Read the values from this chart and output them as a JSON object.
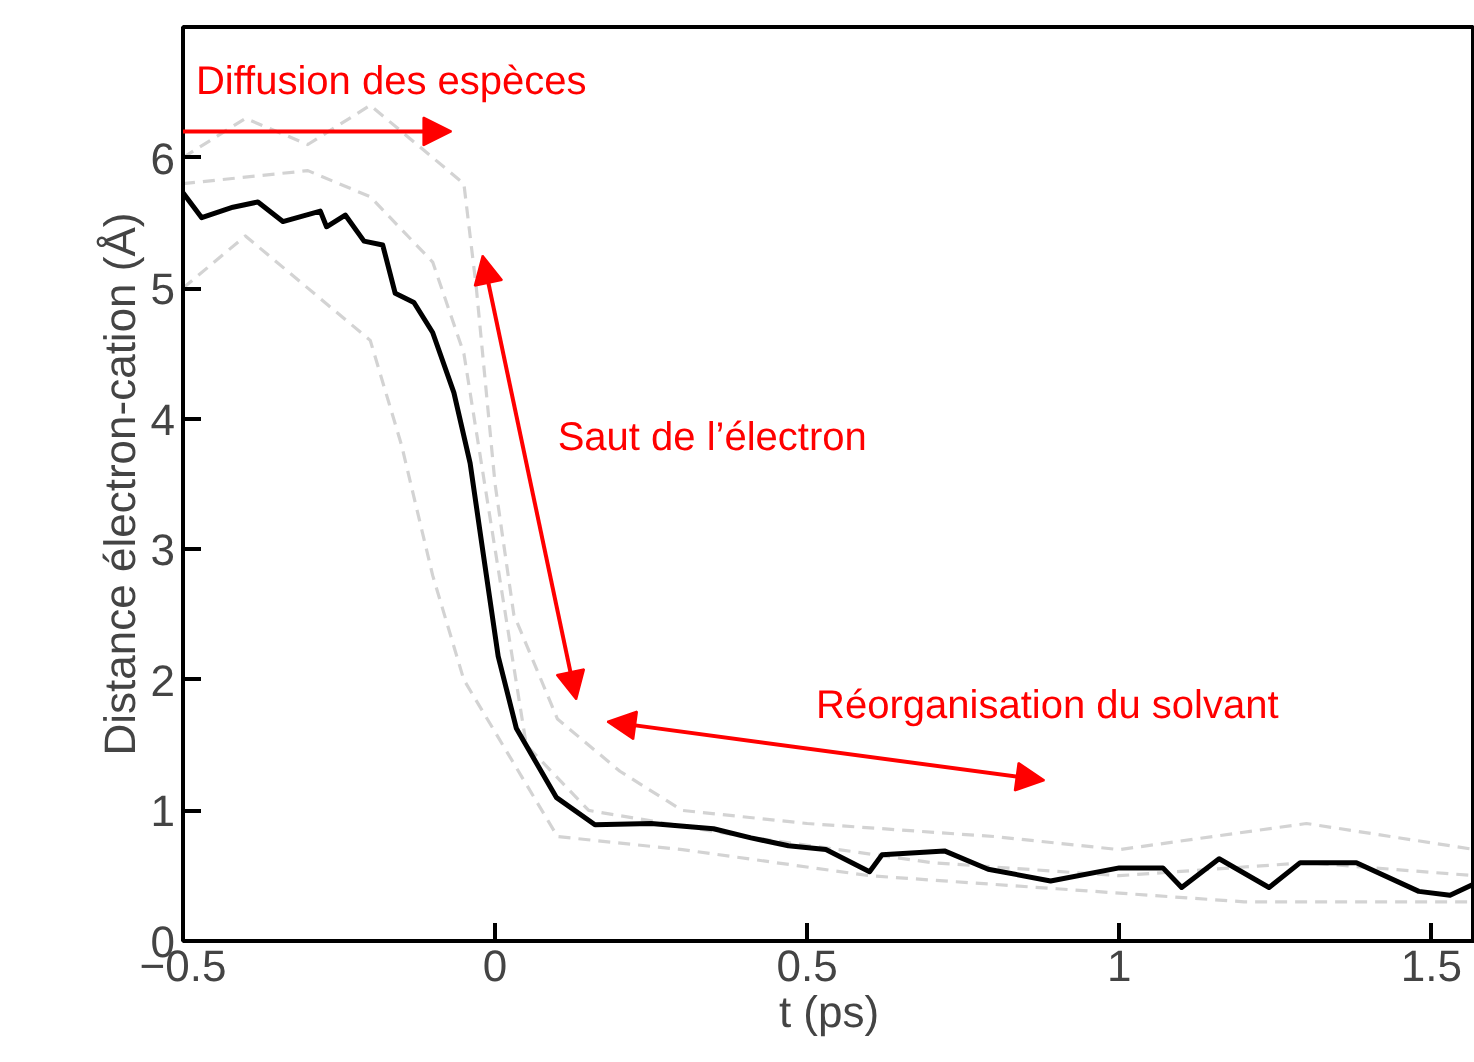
{
  "chart_data": {
    "type": "line",
    "xlabel": "t (ps)",
    "ylabel": "Distance électron-cation (Å)",
    "xlim": [
      -0.5,
      1.57
    ],
    "ylim": [
      0,
      7
    ],
    "xticks": [
      -0.5,
      0,
      0.5,
      1,
      1.5
    ],
    "yticks": [
      0,
      1,
      2,
      3,
      4,
      5,
      6
    ],
    "grid": false,
    "series": [
      {
        "color": "#d3d3d3",
        "line_style": "dashed",
        "x": [
          -0.5,
          -0.4,
          -0.3,
          -0.2,
          -0.1,
          -0.05,
          -0.03,
          0.0,
          0.03,
          0.1,
          0.2,
          0.3,
          0.5,
          0.8,
          1.0,
          1.3,
          1.57
        ],
        "values": [
          6.0,
          6.3,
          6.1,
          6.4,
          6.0,
          5.8,
          5.0,
          3.5,
          2.5,
          1.7,
          1.3,
          1.0,
          0.9,
          0.8,
          0.7,
          0.9,
          0.7
        ]
      },
      {
        "color": "#d3d3d3",
        "line_style": "dashed",
        "x": [
          -0.5,
          -0.4,
          -0.3,
          -0.2,
          -0.15,
          -0.1,
          -0.05,
          0.0,
          0.05,
          0.1,
          0.3,
          0.6,
          0.9,
          1.2,
          1.57
        ],
        "values": [
          5.0,
          5.4,
          5.0,
          4.6,
          3.8,
          2.8,
          2.0,
          1.6,
          1.2,
          0.8,
          0.7,
          0.5,
          0.4,
          0.3,
          0.3
        ]
      },
      {
        "color": "#d3d3d3",
        "line_style": "dashed",
        "x": [
          -0.5,
          -0.3,
          -0.2,
          -0.1,
          -0.05,
          0.0,
          0.05,
          0.15,
          0.4,
          0.7,
          1.0,
          1.3,
          1.57
        ],
        "values": [
          5.8,
          5.9,
          5.7,
          5.2,
          4.5,
          3.0,
          1.5,
          1.0,
          0.8,
          0.6,
          0.5,
          0.6,
          0.5
        ]
      },
      {
        "color": "#000000",
        "line_style": "solid",
        "x": [
          -0.5,
          -0.47,
          -0.42,
          -0.38,
          -0.34,
          -0.28,
          -0.27,
          -0.24,
          -0.21,
          -0.18,
          -0.16,
          -0.13,
          -0.1,
          -0.066,
          -0.04,
          -0.02,
          0.005,
          0.034,
          0.098,
          0.16,
          0.25,
          0.35,
          0.41,
          0.47,
          0.53,
          0.6,
          0.62,
          0.72,
          0.79,
          0.89,
          1.0,
          1.07,
          1.1,
          1.16,
          1.24,
          1.29,
          1.38,
          1.48,
          1.53,
          1.57
        ],
        "values": [
          5.73,
          5.54,
          5.62,
          5.66,
          5.51,
          5.59,
          5.47,
          5.56,
          5.36,
          5.33,
          4.96,
          4.89,
          4.66,
          4.2,
          3.66,
          3.0,
          2.18,
          1.63,
          1.1,
          0.89,
          0.9,
          0.86,
          0.79,
          0.73,
          0.7,
          0.53,
          0.66,
          0.69,
          0.55,
          0.46,
          0.56,
          0.56,
          0.41,
          0.63,
          0.41,
          0.6,
          0.6,
          0.38,
          0.35,
          0.44
        ]
      }
    ],
    "annotations": [
      "Diffusion des espèces",
      "Saut de l’électron",
      "Réorganisation du solvant"
    ]
  }
}
